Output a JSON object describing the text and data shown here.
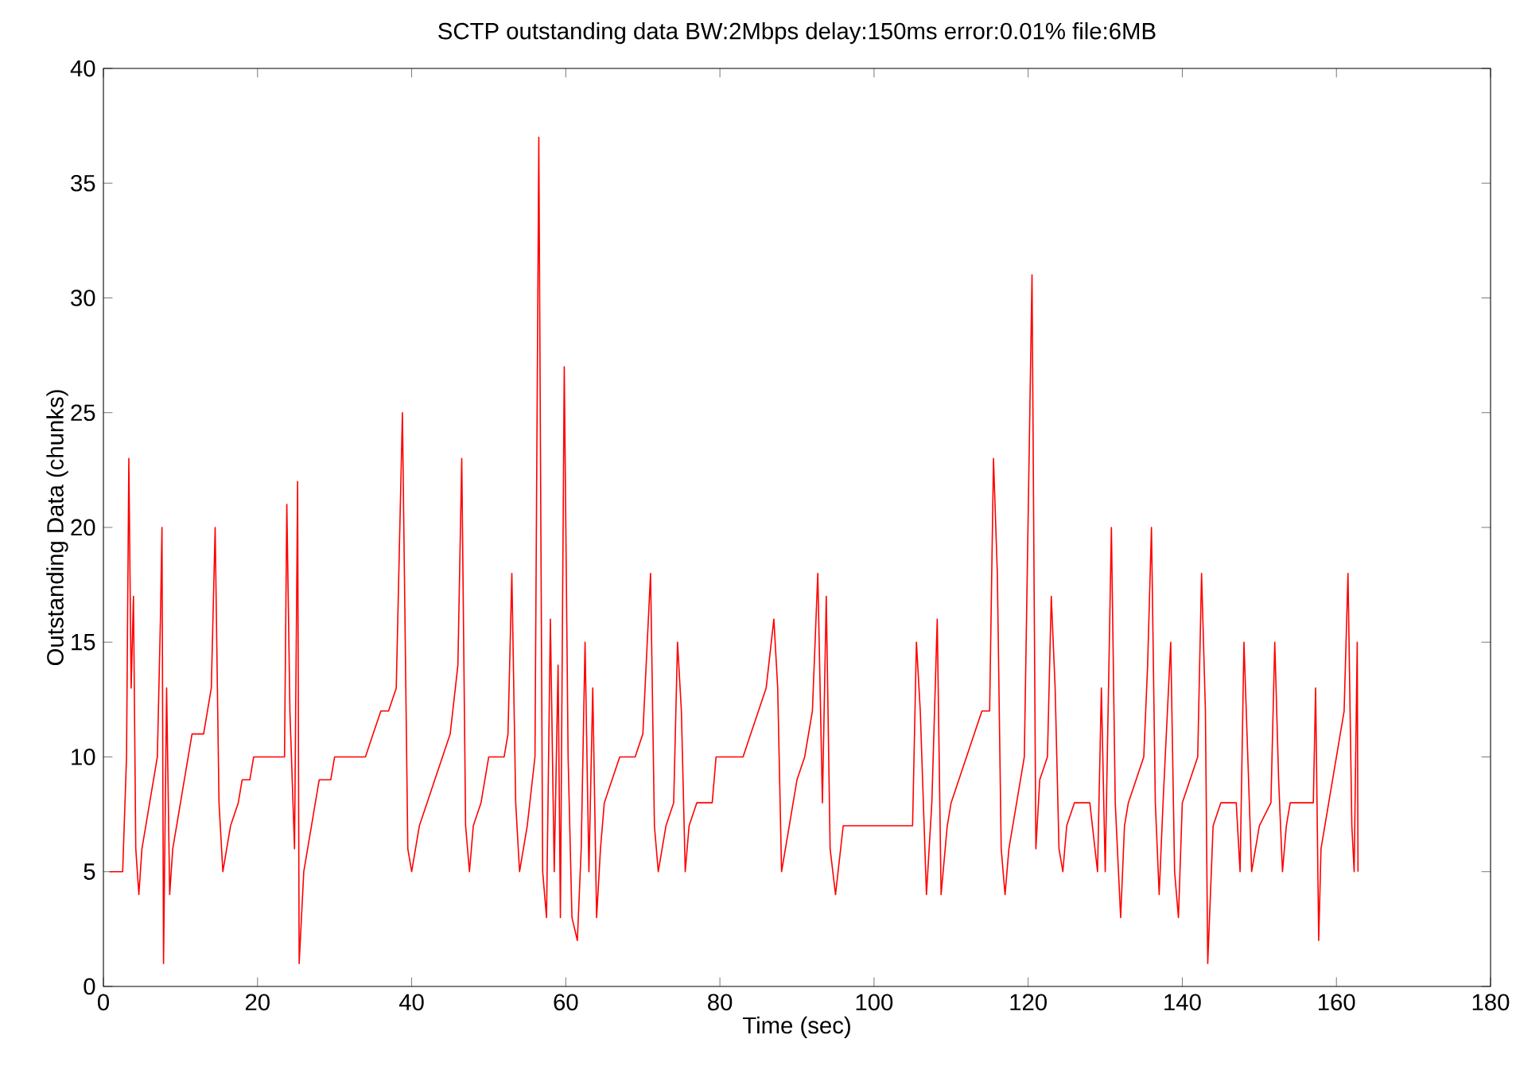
{
  "chart_data": {
    "type": "line",
    "title": "SCTP outstanding data BW:2Mbps delay:150ms error:0.01% file:6MB",
    "xlabel": "Time (sec)",
    "ylabel": "Outstanding Data (chunks)",
    "xlim": [
      0,
      180
    ],
    "ylim": [
      0,
      40
    ],
    "xticks": [
      0,
      20,
      40,
      60,
      80,
      100,
      120,
      140,
      160,
      180
    ],
    "yticks": [
      0,
      5,
      10,
      15,
      20,
      25,
      30,
      35,
      40
    ],
    "marker": "none",
    "line_style": "solid",
    "series": [
      {
        "color": "#ff0000",
        "x": [
          0.8,
          2.5,
          3,
          3.3,
          3.6,
          3.9,
          4.2,
          4.6,
          5,
          5.5,
          6,
          6.5,
          7,
          7.4,
          7.6,
          7.8,
          8.2,
          8.6,
          9,
          9.5,
          10,
          10.5,
          11,
          11.5,
          13,
          13.5,
          14,
          14.5,
          15,
          15.5,
          16,
          16.5,
          17.5,
          18,
          19,
          19.5,
          23.5,
          23.8,
          24.2,
          24.8,
          25.2,
          25.4,
          26,
          27,
          28,
          29.5,
          30,
          34,
          35,
          36,
          37,
          38,
          38.8,
          39.5,
          40,
          41,
          42,
          43,
          44,
          45,
          46,
          46.5,
          47,
          47.5,
          48,
          49,
          50,
          52,
          52.5,
          53,
          53.5,
          54,
          55,
          56,
          56.5,
          57,
          57.5,
          58,
          58.5,
          59,
          59.3,
          59.8,
          60.3,
          60.8,
          61.5,
          62,
          62.5,
          63,
          63.5,
          64,
          64.5,
          65,
          66,
          67,
          69,
          70,
          71,
          71.5,
          72,
          73,
          74,
          74.5,
          75,
          75.5,
          76,
          77,
          79,
          79.5,
          83,
          84,
          85,
          86,
          87,
          87.5,
          88,
          89,
          90,
          91,
          92,
          92.7,
          93.3,
          93.8,
          94.3,
          95,
          96,
          105,
          105.5,
          106,
          106.8,
          107.5,
          108.2,
          108.7,
          109.5,
          110,
          111,
          112,
          113,
          114,
          115,
          115.5,
          116,
          116.5,
          117,
          117.5,
          118,
          119,
          119.5,
          120.5,
          121,
          121.5,
          122.5,
          123,
          123.5,
          124,
          124.5,
          125,
          126,
          128,
          129,
          129.5,
          130,
          130.8,
          131.3,
          132,
          132.5,
          133,
          134,
          135,
          135.5,
          136,
          136.5,
          137,
          137.5,
          138.5,
          139,
          139.5,
          140,
          141,
          142,
          142.5,
          143,
          143.3,
          144,
          145,
          147,
          147.5,
          148,
          148.5,
          149,
          150,
          151.5,
          152,
          152.5,
          153,
          153.5,
          154,
          157,
          157.3,
          157.7,
          158,
          159,
          160,
          161,
          161.5,
          162,
          162.3,
          162.7,
          162.8
        ],
        "values": [
          5,
          5,
          10,
          23,
          13,
          17,
          6,
          4,
          6,
          7,
          8,
          9,
          10,
          16,
          20,
          1,
          13,
          4,
          6,
          7,
          8,
          9,
          10,
          11,
          11,
          12,
          13,
          20,
          8,
          5,
          6,
          7,
          8,
          9,
          9,
          10,
          10,
          21,
          12,
          6,
          22,
          1,
          5,
          7,
          9,
          9,
          10,
          10,
          11,
          12,
          12,
          13,
          25,
          6,
          5,
          7,
          8,
          9,
          10,
          11,
          14,
          23,
          7,
          5,
          7,
          8,
          10,
          10,
          11,
          18,
          8,
          5,
          7,
          10,
          37,
          5,
          3,
          16,
          5,
          14,
          3,
          27,
          10,
          3,
          2,
          6,
          15,
          5,
          13,
          3,
          6,
          8,
          9,
          10,
          10,
          11,
          18,
          7,
          5,
          7,
          8,
          15,
          12,
          5,
          7,
          8,
          8,
          10,
          10,
          11,
          12,
          13,
          16,
          13,
          5,
          7,
          9,
          10,
          12,
          18,
          8,
          17,
          6,
          4,
          7,
          7,
          15,
          12,
          4,
          8,
          16,
          4,
          7,
          8,
          9,
          10,
          11,
          12,
          12,
          23,
          18,
          6,
          4,
          6,
          7,
          9,
          10,
          31,
          6,
          9,
          10,
          17,
          13,
          6,
          5,
          7,
          8,
          8,
          5,
          13,
          5,
          20,
          8,
          3,
          7,
          8,
          9,
          10,
          14,
          20,
          8,
          4,
          8,
          15,
          5,
          3,
          8,
          9,
          10,
          18,
          12,
          1,
          7,
          8,
          8,
          5,
          15,
          10,
          5,
          7,
          8,
          15,
          9,
          5,
          7,
          8,
          8,
          13,
          2,
          6,
          8,
          10,
          12,
          18,
          7,
          5,
          15,
          5
        ]
      }
    ]
  }
}
